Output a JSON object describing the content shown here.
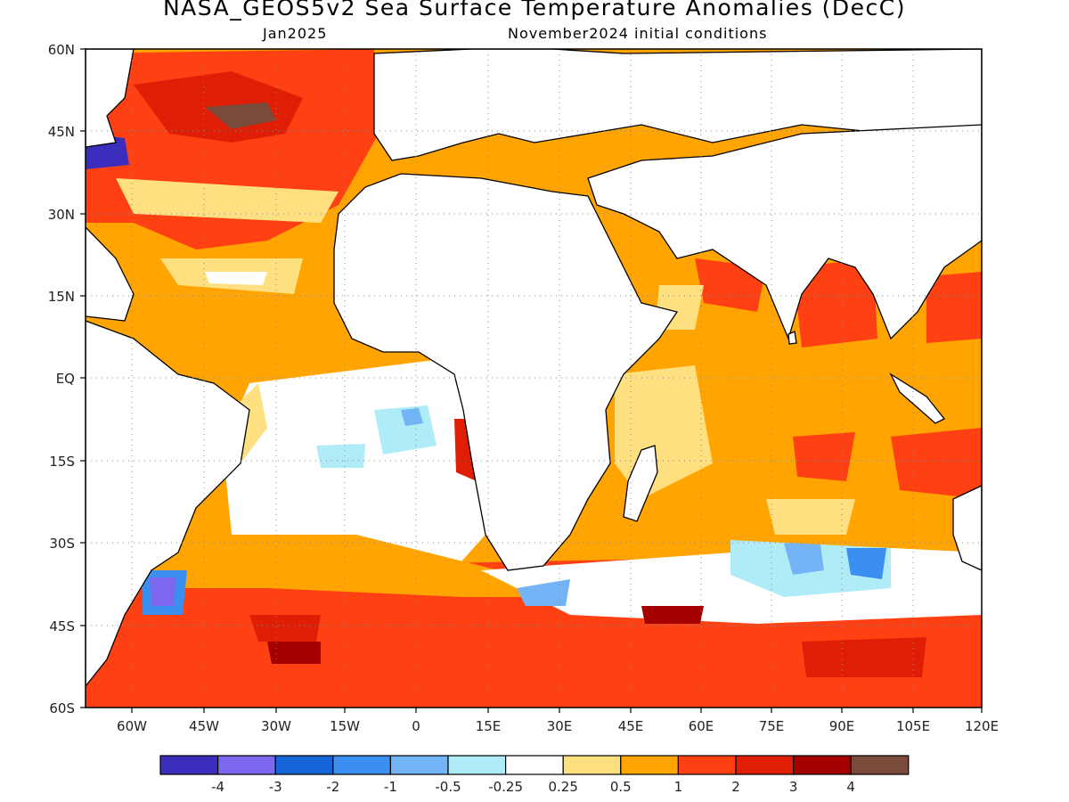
{
  "title": "NASA_GEOS5v2 Sea Surface Temperature Anomalies (DecC)",
  "subtitle_left": "Jan2025",
  "subtitle_right": "November2024 initial conditions",
  "lat_labels": [
    "60N",
    "45N",
    "30N",
    "15N",
    "EQ",
    "15S",
    "30S",
    "45S",
    "60S"
  ],
  "lon_labels": [
    "60W",
    "45W",
    "30W",
    "15W",
    "0",
    "15E",
    "30E",
    "45E",
    "60E",
    "75E",
    "90E",
    "105E",
    "120E"
  ],
  "colorbar": {
    "colors": [
      "#3c2ebd",
      "#7b68ee",
      "#1565d8",
      "#3a8ff0",
      "#72b4f5",
      "#b0ecf7",
      "#ffffff",
      "#ffe080",
      "#ffa400",
      "#ff4013",
      "#e01e05",
      "#a50000",
      "#7a4a3a"
    ],
    "labels": [
      "-4",
      "-3",
      "-2",
      "-1",
      "-0.5",
      "-0.25",
      "0.25",
      "0.5",
      "1",
      "2",
      "3",
      "4"
    ]
  }
}
